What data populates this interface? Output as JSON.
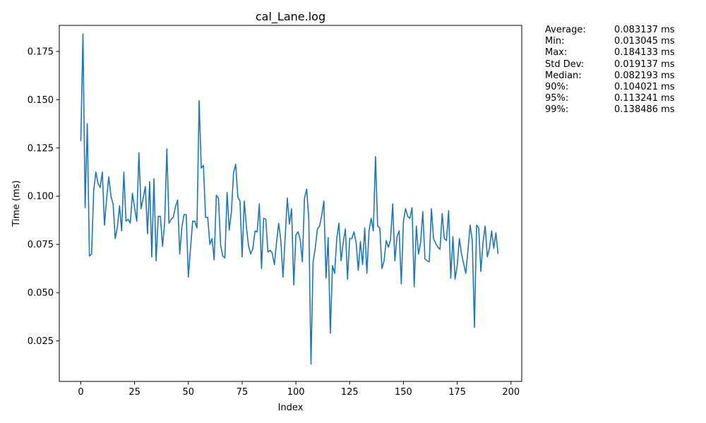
{
  "chart_data": {
    "type": "line",
    "title": "cal_Lane.log",
    "xlabel": "Index",
    "ylabel": "Time (ms)",
    "xlim": [
      -10,
      205
    ],
    "ylim": [
      0.004,
      0.1885
    ],
    "xticks": [
      0,
      25,
      50,
      75,
      100,
      125,
      150,
      175,
      200
    ],
    "yticks": [
      0.025,
      0.05,
      0.075,
      0.1,
      0.125,
      0.15,
      0.175
    ],
    "grid": false,
    "line_color": "#1f77b4",
    "series": [
      {
        "values": [
          0.1285,
          0.1841,
          0.094,
          0.1376,
          0.069,
          0.07,
          0.103,
          0.1125,
          0.1065,
          0.1045,
          0.1125,
          0.085,
          0.0985,
          0.11,
          0.1,
          0.096,
          0.078,
          0.084,
          0.095,
          0.082,
          0.1125,
          0.087,
          0.088,
          0.086,
          0.1015,
          0.094,
          0.087,
          0.1225,
          0.0935,
          0.099,
          0.105,
          0.0805,
          0.1075,
          0.0685,
          0.109,
          0.0665,
          0.0895,
          0.0895,
          0.074,
          0.0865,
          0.1245,
          0.086,
          0.088,
          0.089,
          0.0945,
          0.098,
          0.07,
          0.084,
          0.0905,
          0.0905,
          0.058,
          0.073,
          0.087,
          0.087,
          0.0835,
          0.1495,
          0.1145,
          0.116,
          0.089,
          0.089,
          0.075,
          0.078,
          0.067,
          0.1005,
          0.099,
          0.0745,
          0.069,
          0.068,
          0.102,
          0.0825,
          0.0915,
          0.112,
          0.1165,
          0.0995,
          0.0975,
          0.0685,
          0.0975,
          0.084,
          0.074,
          0.07,
          0.073,
          0.082,
          0.0815,
          0.096,
          0.0625,
          0.0885,
          0.088,
          0.071,
          0.072,
          0.0705,
          0.0645,
          0.076,
          0.086,
          0.077,
          0.058,
          0.0785,
          0.099,
          0.0855,
          0.0935,
          0.054,
          0.08,
          0.0815,
          0.0775,
          0.066,
          0.099,
          0.1037,
          0.088,
          0.013,
          0.066,
          0.073,
          0.083,
          0.0845,
          0.09,
          0.0975,
          0.0575,
          0.0785,
          0.029,
          0.064,
          0.06,
          0.078,
          0.086,
          0.0665,
          0.076,
          0.083,
          0.057,
          0.078,
          0.078,
          0.0815,
          0.076,
          0.0615,
          0.0765,
          0.0645,
          0.0835,
          0.06,
          0.082,
          0.0885,
          0.082,
          0.1205,
          0.0845,
          0.0835,
          0.0625,
          0.0665,
          0.077,
          0.0735,
          0.0775,
          0.096,
          0.0665,
          0.079,
          0.082,
          0.0545,
          0.087,
          0.0935,
          0.0895,
          0.0885,
          0.094,
          0.053,
          0.0845,
          0.07,
          0.076,
          0.092,
          0.0675,
          0.0665,
          0.066,
          0.0935,
          0.078,
          0.0755,
          0.0735,
          0.0725,
          0.091,
          0.078,
          0.077,
          0.0925,
          0.0575,
          0.079,
          0.057,
          0.064,
          0.078,
          0.07,
          0.065,
          0.06,
          0.072,
          0.085,
          0.077,
          0.032,
          0.085,
          0.0835,
          0.061,
          0.076,
          0.0845,
          0.0685,
          0.073,
          0.082,
          0.073,
          0.081,
          0.07
        ]
      }
    ]
  },
  "stats": [
    {
      "label": "Average:",
      "value": "0.083137 ms"
    },
    {
      "label": "Min:",
      "value": "0.013045 ms"
    },
    {
      "label": "Max:",
      "value": "0.184133 ms"
    },
    {
      "label": "Std Dev:",
      "value": "0.019137 ms"
    },
    {
      "label": "Median:",
      "value": "0.082193 ms"
    },
    {
      "label": "90%:",
      "value": "0.104021 ms"
    },
    {
      "label": "95%:",
      "value": "0.113241 ms"
    },
    {
      "label": "99%:",
      "value": "0.138486 ms"
    }
  ]
}
